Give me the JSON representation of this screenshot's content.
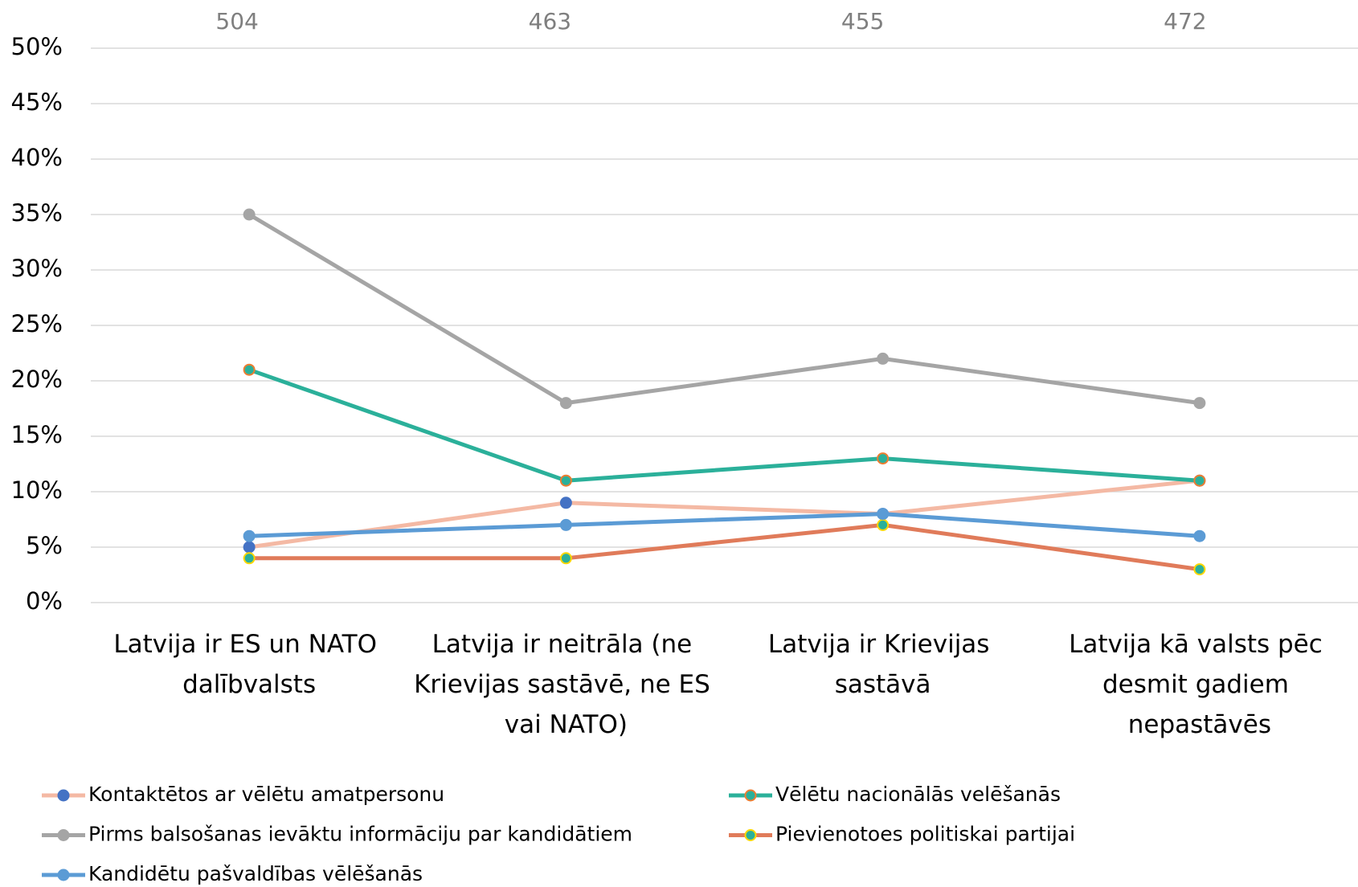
{
  "chart_data": {
    "type": "line",
    "categories": [
      "Latvija ir ES un NATO dalībvalsts",
      "Latvija ir neitrāla (ne Krievijas sastāvē, ne ES vai NATO)",
      "Latvija ir Krievijas sastāvā",
      "Latvija kā valsts pēc desmit gadiem nepastāvēs"
    ],
    "sample_sizes": [
      504,
      463,
      455,
      472
    ],
    "series": [
      {
        "name": "Kontaktētos ar vēlētu amatpersonu",
        "color": "#f4b9a4",
        "marker_color": "#4472c4",
        "marker_edge": "#4472c4",
        "values": [
          5,
          9,
          8,
          11
        ]
      },
      {
        "name": "Vēlētu nacionālās velēšanās",
        "color": "#2bb09a",
        "marker_color": "#2bb09a",
        "marker_edge": "#ed7d31",
        "values": [
          21,
          11,
          13,
          11
        ]
      },
      {
        "name": "Pirms balsošanas ievāktu informāciju par kandidātiem",
        "color": "#a5a5a5",
        "marker_color": "#a5a5a5",
        "marker_edge": "#a5a5a5",
        "values": [
          35,
          18,
          22,
          18
        ]
      },
      {
        "name": "Pievienotoes politiskai partijai",
        "color": "#e07b5a",
        "marker_color": "#2bb09a",
        "marker_edge": "#ffd700",
        "values": [
          4,
          4,
          7,
          3
        ]
      },
      {
        "name": "Kandidētu pašvaldības vēlēšanās",
        "color": "#5b9bd5",
        "marker_color": "#5b9bd5",
        "marker_edge": "#5b9bd5",
        "values": [
          6,
          7,
          8,
          6
        ]
      }
    ],
    "ylim": [
      0,
      50
    ],
    "yticks": [
      {
        "value": 0,
        "label": "0%"
      },
      {
        "value": 5,
        "label": "5%"
      },
      {
        "value": 10,
        "label": "10%"
      },
      {
        "value": 15,
        "label": "15%"
      },
      {
        "value": 20,
        "label": "20%"
      },
      {
        "value": 25,
        "label": "25%"
      },
      {
        "value": 30,
        "label": "30%"
      },
      {
        "value": 35,
        "label": "35%"
      },
      {
        "value": 40,
        "label": "40%"
      },
      {
        "value": 45,
        "label": "45%"
      },
      {
        "value": 50,
        "label": "50%"
      }
    ],
    "grid": true,
    "legend": "bottom"
  }
}
